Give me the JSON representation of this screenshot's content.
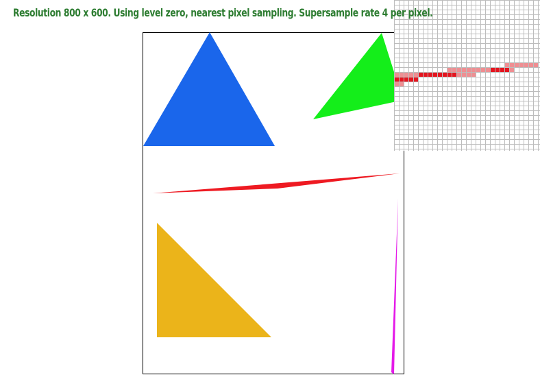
{
  "status": {
    "text": "Resolution 800 x 600. Using level zero, nearest pixel sampling. Supersample rate 4 per pixel."
  },
  "colors": {
    "status_text": "#2e7d32",
    "frame": "#000000",
    "background": "#ffffff",
    "blue_triangle": "#1a66eb",
    "green_triangle": "#14ee1a",
    "red_triangle": "#ee1a22",
    "yellow_triangle": "#ebb41a",
    "magenta_triangle": "#e41ae8",
    "zoom_grid": "#bdbdbd",
    "zoom_pixel_full": "#e4141e",
    "zoom_pixel_partial": "#ef8e92"
  },
  "zoom": {
    "label": "pixel-inspector"
  }
}
